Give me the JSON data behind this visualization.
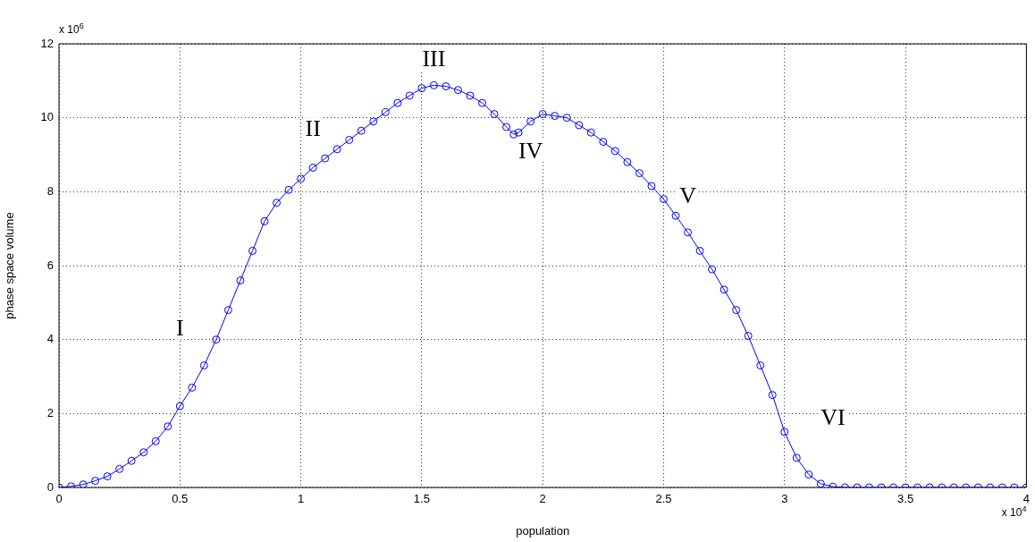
{
  "chart_data": {
    "type": "line",
    "xlabel": "population",
    "ylabel": "phase space volume",
    "x": [
      0,
      0.05,
      0.1,
      0.15,
      0.2,
      0.25,
      0.3,
      0.35,
      0.4,
      0.45,
      0.5,
      0.55,
      0.6,
      0.65,
      0.7,
      0.75,
      0.8,
      0.85,
      0.9,
      0.95,
      1.0,
      1.05,
      1.1,
      1.15,
      1.2,
      1.25,
      1.3,
      1.35,
      1.4,
      1.45,
      1.5,
      1.55,
      1.6,
      1.65,
      1.7,
      1.75,
      1.8,
      1.85,
      1.88,
      1.9,
      1.95,
      2.0,
      2.05,
      2.1,
      2.15,
      2.2,
      2.25,
      2.3,
      2.35,
      2.4,
      2.45,
      2.5,
      2.55,
      2.6,
      2.65,
      2.7,
      2.75,
      2.8,
      2.85,
      2.9,
      2.95,
      3.0,
      3.05,
      3.1,
      3.15,
      3.2,
      3.25,
      3.3,
      3.35,
      3.4,
      3.45,
      3.5,
      3.55,
      3.6,
      3.65,
      3.7,
      3.75,
      3.8,
      3.85,
      3.9,
      3.95,
      4.0
    ],
    "series": [
      {
        "color": "#0000ff",
        "values": [
          0,
          0.03,
          0.08,
          0.18,
          0.3,
          0.5,
          0.72,
          0.95,
          1.25,
          1.65,
          2.2,
          2.7,
          3.3,
          4.0,
          4.8,
          5.6,
          6.4,
          7.2,
          7.7,
          8.05,
          8.35,
          8.65,
          8.9,
          9.15,
          9.4,
          9.65,
          9.9,
          10.15,
          10.4,
          10.6,
          10.8,
          10.88,
          10.85,
          10.75,
          10.6,
          10.4,
          10.1,
          9.75,
          9.55,
          9.6,
          9.9,
          10.1,
          10.05,
          10.0,
          9.8,
          9.6,
          9.35,
          9.1,
          8.8,
          8.5,
          8.15,
          7.8,
          7.35,
          6.9,
          6.4,
          5.9,
          5.35,
          4.8,
          4.1,
          3.3,
          2.5,
          1.5,
          0.8,
          0.35,
          0.1,
          0.02,
          0,
          0,
          0,
          0,
          0,
          0,
          0,
          0,
          0,
          0,
          0,
          0,
          0,
          0,
          0,
          0
        ]
      }
    ],
    "xlim": [
      0,
      4
    ],
    "xticks": [
      0,
      0.5,
      1,
      1.5,
      2,
      2.5,
      3,
      3.5,
      4
    ],
    "ylim": [
      0,
      12
    ],
    "yticks": [
      0,
      2,
      4,
      6,
      8,
      10,
      12
    ],
    "grid": true,
    "marker": "circle",
    "legend": false,
    "annotations": [
      "x 10$^{6}$",
      "x 10$^{4}$",
      "I",
      "II",
      "III",
      "IV",
      "V",
      "VI"
    ]
  }
}
